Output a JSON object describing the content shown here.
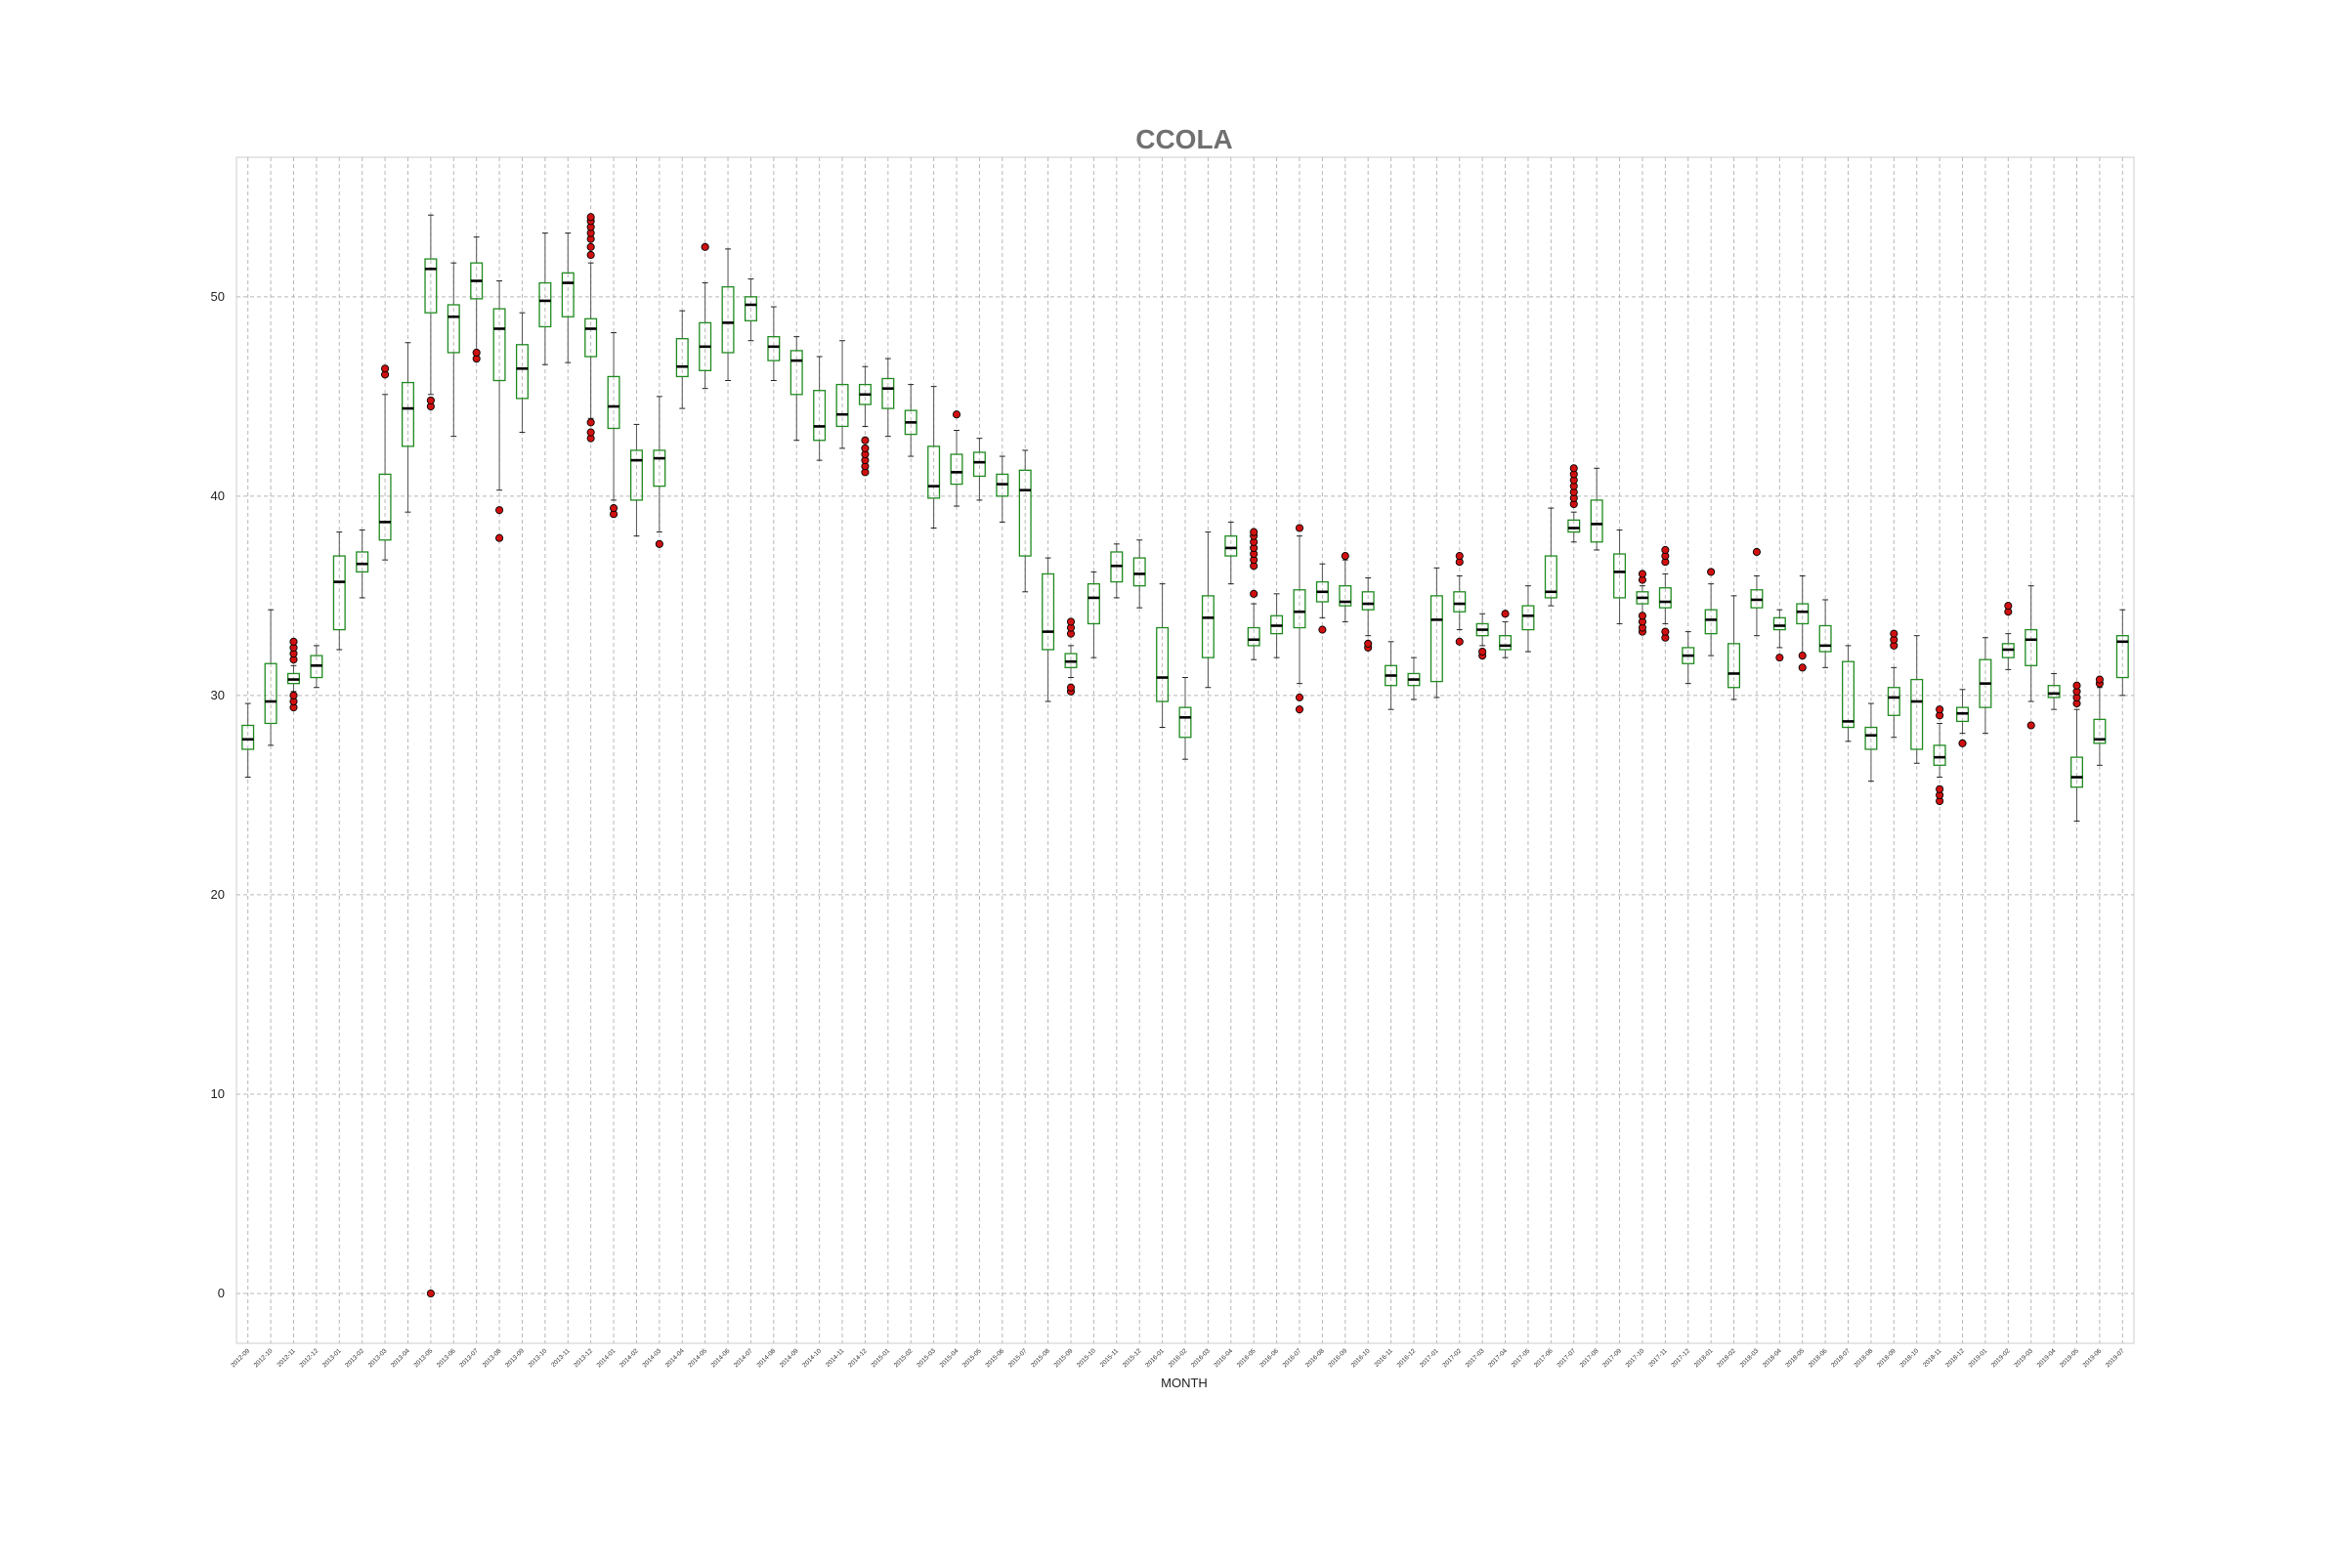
{
  "chart_data": {
    "type": "box",
    "title": "CCOLA",
    "xlabel": "MONTH",
    "ylabel": "",
    "ylim": [
      -2.5,
      57
    ],
    "yticks": [
      0,
      10,
      20,
      30,
      40,
      50
    ],
    "grid": true,
    "categories": [
      "2012-09",
      "2012-10",
      "2012-11",
      "2012-12",
      "2013-01",
      "2013-02",
      "2013-03",
      "2013-04",
      "2013-05",
      "2013-06",
      "2013-07",
      "2013-08",
      "2013-09",
      "2013-10",
      "2013-11",
      "2013-12",
      "2014-01",
      "2014-02",
      "2014-03",
      "2014-04",
      "2014-05",
      "2014-06",
      "2014-07",
      "2014-08",
      "2014-09",
      "2014-10",
      "2014-11",
      "2014-12",
      "2015-01",
      "2015-02",
      "2015-03",
      "2015-04",
      "2015-05",
      "2015-06",
      "2015-07",
      "2015-08",
      "2015-09",
      "2015-10",
      "2015-11",
      "2015-12",
      "2016-01",
      "2016-02",
      "2016-03",
      "2016-04",
      "2016-05",
      "2016-06",
      "2016-07",
      "2016-08",
      "2016-09",
      "2016-10",
      "2016-11",
      "2016-12",
      "2017-01",
      "2017-02",
      "2017-03",
      "2017-04",
      "2017-05",
      "2017-06",
      "2017-07",
      "2017-08",
      "2017-09",
      "2017-10",
      "2017-11",
      "2017-12",
      "2018-01",
      "2018-02",
      "2018-03",
      "2018-04",
      "2018-05",
      "2018-06",
      "2018-07",
      "2018-08",
      "2018-09",
      "2018-10",
      "2018-11",
      "2018-12",
      "2019-01",
      "2019-02",
      "2019-03",
      "2019-04",
      "2019-05",
      "2019-06",
      "2019-07"
    ],
    "series": [
      {
        "whislo": 25.9,
        "q1": 27.3,
        "med": 27.8,
        "q3": 28.5,
        "whishi": 29.6,
        "fliers": []
      },
      {
        "whislo": 27.5,
        "q1": 28.6,
        "med": 29.7,
        "q3": 31.6,
        "whishi": 34.3,
        "fliers": []
      },
      {
        "whislo": 30.2,
        "q1": 30.6,
        "med": 30.8,
        "q3": 31.1,
        "whishi": 31.5,
        "fliers": [
          29.4,
          29.7,
          30.0,
          31.8,
          32.1,
          32.4,
          32.7
        ]
      },
      {
        "whislo": 30.4,
        "q1": 30.9,
        "med": 31.5,
        "q3": 32.0,
        "whishi": 32.5,
        "fliers": []
      },
      {
        "whislo": 32.3,
        "q1": 33.3,
        "med": 35.7,
        "q3": 37.0,
        "whishi": 38.2,
        "fliers": []
      },
      {
        "whislo": 34.9,
        "q1": 36.2,
        "med": 36.6,
        "q3": 37.2,
        "whishi": 38.3,
        "fliers": []
      },
      {
        "whislo": 36.8,
        "q1": 37.8,
        "med": 38.7,
        "q3": 41.1,
        "whishi": 45.1,
        "fliers": [
          46.1,
          46.4
        ]
      },
      {
        "whislo": 39.2,
        "q1": 42.5,
        "med": 44.4,
        "q3": 45.7,
        "whishi": 47.7,
        "fliers": []
      },
      {
        "whislo": 45.1,
        "q1": 49.2,
        "med": 51.4,
        "q3": 51.9,
        "whishi": 54.1,
        "fliers": [
          0,
          44.5,
          44.8
        ]
      },
      {
        "whislo": 43.0,
        "q1": 47.2,
        "med": 49.0,
        "q3": 49.6,
        "whishi": 51.7,
        "fliers": []
      },
      {
        "whislo": 47.3,
        "q1": 49.9,
        "med": 50.8,
        "q3": 51.7,
        "whishi": 53.0,
        "fliers": [
          46.9,
          47.2
        ]
      },
      {
        "whislo": 40.3,
        "q1": 45.8,
        "med": 48.4,
        "q3": 49.4,
        "whishi": 50.8,
        "fliers": [
          37.9,
          39.3
        ]
      },
      {
        "whislo": 43.2,
        "q1": 44.9,
        "med": 46.4,
        "q3": 47.6,
        "whishi": 49.2,
        "fliers": []
      },
      {
        "whislo": 46.6,
        "q1": 48.5,
        "med": 49.8,
        "q3": 50.7,
        "whishi": 53.2,
        "fliers": []
      },
      {
        "whislo": 46.7,
        "q1": 49.0,
        "med": 50.7,
        "q3": 51.2,
        "whishi": 53.2,
        "fliers": []
      },
      {
        "whislo": 43.9,
        "q1": 47.0,
        "med": 48.4,
        "q3": 48.9,
        "whishi": 51.7,
        "fliers": [
          42.9,
          43.2,
          43.7,
          52.1,
          52.5,
          52.9,
          53.2,
          53.5,
          53.8,
          54.0
        ]
      },
      {
        "whislo": 39.8,
        "q1": 43.4,
        "med": 44.5,
        "q3": 46.0,
        "whishi": 48.2,
        "fliers": [
          39.1,
          39.4
        ]
      },
      {
        "whislo": 38.0,
        "q1": 39.8,
        "med": 41.8,
        "q3": 42.3,
        "whishi": 43.6,
        "fliers": []
      },
      {
        "whislo": 38.2,
        "q1": 40.5,
        "med": 41.9,
        "q3": 42.3,
        "whishi": 45.0,
        "fliers": [
          37.6
        ]
      },
      {
        "whislo": 44.4,
        "q1": 46.0,
        "med": 46.5,
        "q3": 47.9,
        "whishi": 49.3,
        "fliers": []
      },
      {
        "whislo": 45.4,
        "q1": 46.3,
        "med": 47.5,
        "q3": 48.7,
        "whishi": 50.7,
        "fliers": [
          52.5
        ]
      },
      {
        "whislo": 45.8,
        "q1": 47.2,
        "med": 48.7,
        "q3": 50.5,
        "whishi": 52.4,
        "fliers": []
      },
      {
        "whislo": 47.8,
        "q1": 48.8,
        "med": 49.6,
        "q3": 50.0,
        "whishi": 50.9,
        "fliers": []
      },
      {
        "whislo": 45.8,
        "q1": 46.8,
        "med": 47.5,
        "q3": 48.0,
        "whishi": 49.5,
        "fliers": []
      },
      {
        "whislo": 42.8,
        "q1": 45.1,
        "med": 46.8,
        "q3": 47.3,
        "whishi": 48.0,
        "fliers": []
      },
      {
        "whislo": 41.8,
        "q1": 42.8,
        "med": 43.5,
        "q3": 45.3,
        "whishi": 47.0,
        "fliers": []
      },
      {
        "whislo": 42.4,
        "q1": 43.5,
        "med": 44.1,
        "q3": 45.6,
        "whishi": 47.8,
        "fliers": []
      },
      {
        "whislo": 43.5,
        "q1": 44.6,
        "med": 45.1,
        "q3": 45.6,
        "whishi": 46.5,
        "fliers": [
          41.2,
          41.5,
          41.8,
          42.1,
          42.4,
          42.8
        ]
      },
      {
        "whislo": 43.0,
        "q1": 44.4,
        "med": 45.4,
        "q3": 45.9,
        "whishi": 46.9,
        "fliers": []
      },
      {
        "whislo": 42.0,
        "q1": 43.1,
        "med": 43.7,
        "q3": 44.3,
        "whishi": 45.6,
        "fliers": []
      },
      {
        "whislo": 38.4,
        "q1": 39.9,
        "med": 40.5,
        "q3": 42.5,
        "whishi": 45.5,
        "fliers": []
      },
      {
        "whislo": 39.5,
        "q1": 40.6,
        "med": 41.2,
        "q3": 42.1,
        "whishi": 43.3,
        "fliers": [
          44.1
        ]
      },
      {
        "whislo": 39.8,
        "q1": 41.0,
        "med": 41.7,
        "q3": 42.2,
        "whishi": 42.9,
        "fliers": []
      },
      {
        "whislo": 38.7,
        "q1": 40.0,
        "med": 40.6,
        "q3": 41.1,
        "whishi": 42.0,
        "fliers": []
      },
      {
        "whislo": 35.2,
        "q1": 37.0,
        "med": 40.3,
        "q3": 41.3,
        "whishi": 42.3,
        "fliers": []
      },
      {
        "whislo": 29.7,
        "q1": 32.3,
        "med": 33.2,
        "q3": 36.1,
        "whishi": 36.9,
        "fliers": []
      },
      {
        "whislo": 30.9,
        "q1": 31.4,
        "med": 31.7,
        "q3": 32.1,
        "whishi": 32.5,
        "fliers": [
          30.2,
          30.4,
          33.1,
          33.4,
          33.7
        ]
      },
      {
        "whislo": 31.9,
        "q1": 33.6,
        "med": 34.9,
        "q3": 35.6,
        "whishi": 36.2,
        "fliers": []
      },
      {
        "whislo": 34.9,
        "q1": 35.7,
        "med": 36.5,
        "q3": 37.2,
        "whishi": 37.6,
        "fliers": []
      },
      {
        "whislo": 34.4,
        "q1": 35.5,
        "med": 36.1,
        "q3": 36.9,
        "whishi": 37.8,
        "fliers": []
      },
      {
        "whislo": 28.4,
        "q1": 29.7,
        "med": 30.9,
        "q3": 33.4,
        "whishi": 35.6,
        "fliers": []
      },
      {
        "whislo": 26.8,
        "q1": 27.9,
        "med": 28.9,
        "q3": 29.4,
        "whishi": 30.9,
        "fliers": []
      },
      {
        "whislo": 30.4,
        "q1": 31.9,
        "med": 33.9,
        "q3": 35.0,
        "whishi": 38.2,
        "fliers": []
      },
      {
        "whislo": 35.6,
        "q1": 37.0,
        "med": 37.4,
        "q3": 38.0,
        "whishi": 38.7,
        "fliers": []
      },
      {
        "whislo": 31.8,
        "q1": 32.5,
        "med": 32.8,
        "q3": 33.4,
        "whishi": 34.6,
        "fliers": [
          35.1,
          36.5,
          36.8,
          37.1,
          37.4,
          37.7,
          38.0,
          38.2
        ]
      },
      {
        "whislo": 31.9,
        "q1": 33.1,
        "med": 33.5,
        "q3": 34.0,
        "whishi": 35.1,
        "fliers": []
      },
      {
        "whislo": 30.6,
        "q1": 33.4,
        "med": 34.2,
        "q3": 35.3,
        "whishi": 38.0,
        "fliers": [
          29.3,
          29.9,
          38.4
        ]
      },
      {
        "whislo": 33.9,
        "q1": 34.7,
        "med": 35.2,
        "q3": 35.7,
        "whishi": 36.6,
        "fliers": [
          33.3
        ]
      },
      {
        "whislo": 33.7,
        "q1": 34.5,
        "med": 34.7,
        "q3": 35.5,
        "whishi": 36.8,
        "fliers": [
          37.0
        ]
      },
      {
        "whislo": 33.0,
        "q1": 34.3,
        "med": 34.6,
        "q3": 35.2,
        "whishi": 35.9,
        "fliers": [
          32.4,
          32.6
        ]
      },
      {
        "whislo": 29.3,
        "q1": 30.5,
        "med": 31.0,
        "q3": 31.5,
        "whishi": 32.7,
        "fliers": []
      },
      {
        "whislo": 29.8,
        "q1": 30.5,
        "med": 30.8,
        "q3": 31.1,
        "whishi": 31.9,
        "fliers": []
      },
      {
        "whislo": 29.9,
        "q1": 30.7,
        "med": 33.8,
        "q3": 35.0,
        "whishi": 36.4,
        "fliers": []
      },
      {
        "whislo": 33.3,
        "q1": 34.2,
        "med": 34.6,
        "q3": 35.2,
        "whishi": 36.0,
        "fliers": [
          32.7,
          36.7,
          37.0
        ]
      },
      {
        "whislo": 32.5,
        "q1": 33.0,
        "med": 33.3,
        "q3": 33.6,
        "whishi": 34.1,
        "fliers": [
          32.0,
          32.2
        ]
      },
      {
        "whislo": 31.9,
        "q1": 32.3,
        "med": 32.5,
        "q3": 33.0,
        "whishi": 33.7,
        "fliers": [
          34.1
        ]
      },
      {
        "whislo": 32.2,
        "q1": 33.3,
        "med": 34.0,
        "q3": 34.5,
        "whishi": 35.5,
        "fliers": []
      },
      {
        "whislo": 34.5,
        "q1": 34.9,
        "med": 35.2,
        "q3": 37.0,
        "whishi": 39.4,
        "fliers": []
      },
      {
        "whislo": 37.7,
        "q1": 38.2,
        "med": 38.4,
        "q3": 38.8,
        "whishi": 39.2,
        "fliers": [
          39.6,
          39.9,
          40.2,
          40.5,
          40.8,
          41.1,
          41.4
        ]
      },
      {
        "whislo": 37.3,
        "q1": 37.7,
        "med": 38.6,
        "q3": 39.8,
        "whishi": 41.4,
        "fliers": []
      },
      {
        "whislo": 33.6,
        "q1": 34.9,
        "med": 36.2,
        "q3": 37.1,
        "whishi": 38.3,
        "fliers": []
      },
      {
        "whislo": 34.1,
        "q1": 34.6,
        "med": 34.9,
        "q3": 35.2,
        "whishi": 35.5,
        "fliers": [
          33.2,
          33.4,
          33.7,
          34.0,
          35.8,
          36.1
        ]
      },
      {
        "whislo": 33.6,
        "q1": 34.4,
        "med": 34.7,
        "q3": 35.4,
        "whishi": 36.1,
        "fliers": [
          32.9,
          33.2,
          36.7,
          37.0,
          37.3
        ]
      },
      {
        "whislo": 30.6,
        "q1": 31.6,
        "med": 32.0,
        "q3": 32.4,
        "whishi": 33.2,
        "fliers": []
      },
      {
        "whislo": 32.0,
        "q1": 33.1,
        "med": 33.8,
        "q3": 34.3,
        "whishi": 35.6,
        "fliers": [
          36.2
        ]
      },
      {
        "whislo": 29.8,
        "q1": 30.4,
        "med": 31.1,
        "q3": 32.6,
        "whishi": 35.0,
        "fliers": []
      },
      {
        "whislo": 33.0,
        "q1": 34.4,
        "med": 34.8,
        "q3": 35.3,
        "whishi": 36.0,
        "fliers": [
          37.2
        ]
      },
      {
        "whislo": 32.4,
        "q1": 33.3,
        "med": 33.5,
        "q3": 33.9,
        "whishi": 34.3,
        "fliers": [
          31.9
        ]
      },
      {
        "whislo": 31.9,
        "q1": 33.6,
        "med": 34.2,
        "q3": 34.6,
        "whishi": 36.0,
        "fliers": [
          31.4,
          32.0
        ]
      },
      {
        "whislo": 31.4,
        "q1": 32.2,
        "med": 32.5,
        "q3": 33.5,
        "whishi": 34.8,
        "fliers": []
      },
      {
        "whislo": 27.7,
        "q1": 28.4,
        "med": 28.7,
        "q3": 31.7,
        "whishi": 32.5,
        "fliers": []
      },
      {
        "whislo": 25.7,
        "q1": 27.3,
        "med": 28.0,
        "q3": 28.4,
        "whishi": 29.6,
        "fliers": []
      },
      {
        "whislo": 27.9,
        "q1": 29.0,
        "med": 29.9,
        "q3": 30.4,
        "whishi": 31.4,
        "fliers": [
          32.5,
          32.8,
          33.1
        ]
      },
      {
        "whislo": 26.6,
        "q1": 27.3,
        "med": 29.7,
        "q3": 30.8,
        "whishi": 33.0,
        "fliers": []
      },
      {
        "whislo": 25.9,
        "q1": 26.5,
        "med": 26.9,
        "q3": 27.5,
        "whishi": 28.6,
        "fliers": [
          24.7,
          25.0,
          25.3,
          29.0,
          29.3
        ]
      },
      {
        "whislo": 28.1,
        "q1": 28.7,
        "med": 29.1,
        "q3": 29.4,
        "whishi": 30.3,
        "fliers": [
          27.6
        ]
      },
      {
        "whislo": 28.1,
        "q1": 29.4,
        "med": 30.6,
        "q3": 31.8,
        "whishi": 32.9,
        "fliers": []
      },
      {
        "whislo": 31.3,
        "q1": 31.9,
        "med": 32.3,
        "q3": 32.6,
        "whishi": 33.1,
        "fliers": [
          34.2,
          34.5
        ]
      },
      {
        "whislo": 29.7,
        "q1": 31.5,
        "med": 32.8,
        "q3": 33.3,
        "whishi": 35.5,
        "fliers": [
          28.5
        ]
      },
      {
        "whislo": 29.3,
        "q1": 29.9,
        "med": 30.1,
        "q3": 30.5,
        "whishi": 31.1,
        "fliers": []
      },
      {
        "whislo": 23.7,
        "q1": 25.4,
        "med": 25.9,
        "q3": 26.9,
        "whishi": 29.3,
        "fliers": [
          29.6,
          29.9,
          30.2,
          30.5
        ]
      },
      {
        "whislo": 26.5,
        "q1": 27.6,
        "med": 27.8,
        "q3": 28.8,
        "whishi": 30.4,
        "fliers": [
          30.6,
          30.8
        ]
      },
      {
        "whislo": 30.0,
        "q1": 30.9,
        "med": 32.7,
        "q3": 33.0,
        "whishi": 34.3,
        "fliers": []
      }
    ]
  }
}
